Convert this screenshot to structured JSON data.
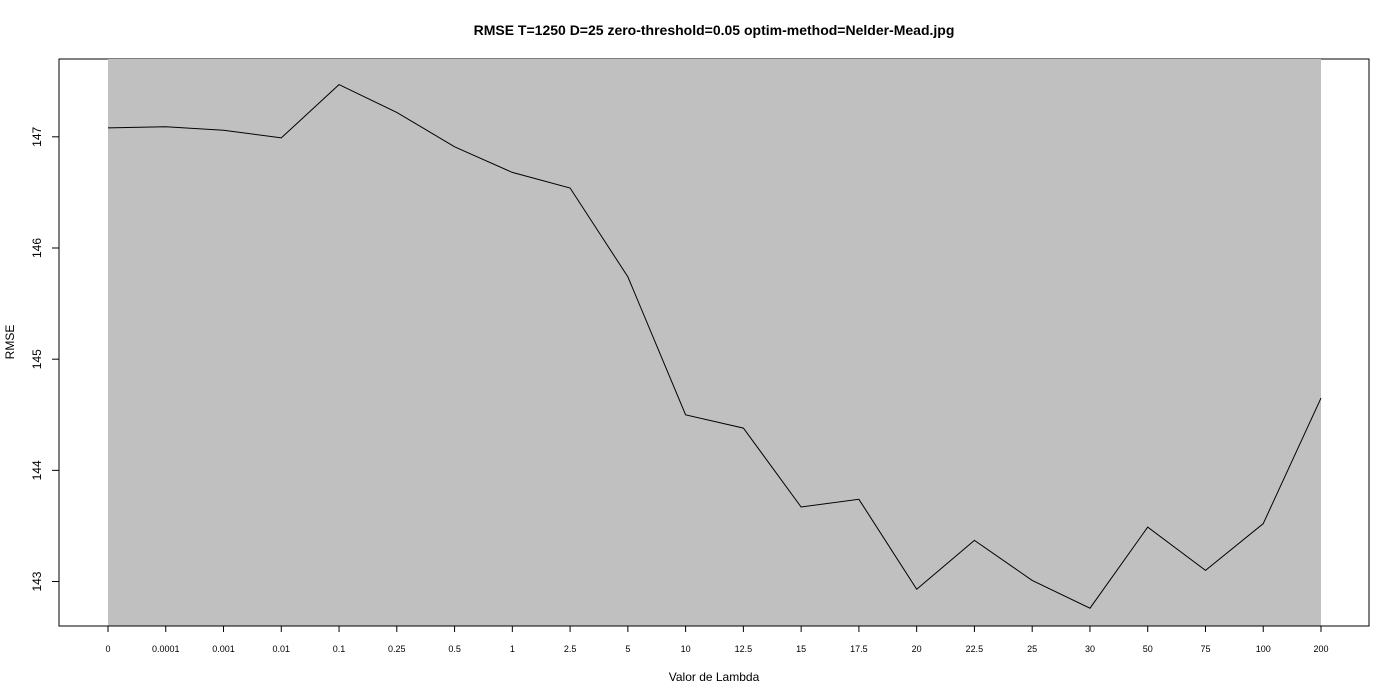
{
  "chart_data": {
    "type": "line",
    "title": "RMSE T=1250 D=25 zero-threshold=0.05 optim-method=Nelder-Mead.jpg",
    "xlabel": "Valor de Lambda",
    "ylabel": "RMSE",
    "categories": [
      "0",
      "0.0001",
      "0.001",
      "0.01",
      "0.1",
      "0.25",
      "0.5",
      "1",
      "2.5",
      "5",
      "10",
      "12.5",
      "15",
      "17.5",
      "20",
      "22.5",
      "25",
      "30",
      "50",
      "75",
      "100",
      "200"
    ],
    "series": [
      {
        "values": [
          147.08,
          147.09,
          147.06,
          146.99,
          147.47,
          147.22,
          146.91,
          146.68,
          146.54,
          145.74,
          144.5,
          144.38,
          143.67,
          143.74,
          142.93,
          143.37,
          143.01,
          142.76,
          143.49,
          143.1,
          143.52,
          144.65
        ],
        "color": "#000000"
      }
    ],
    "yticks": [
      143,
      144,
      145,
      146,
      147
    ],
    "ylim": [
      142.6,
      147.7
    ],
    "grid": false,
    "legend": "none",
    "colors": {
      "panel_background": "#c0c0c0",
      "line": "#000000",
      "axis": "#000000"
    }
  }
}
